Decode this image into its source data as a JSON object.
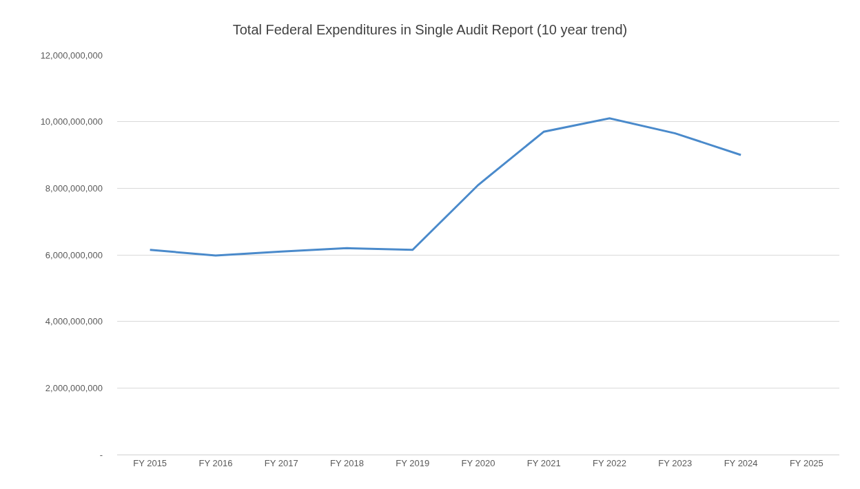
{
  "chart_data": {
    "type": "line",
    "title": "Total Federal Expenditures in Single Audit Report (10 year trend)",
    "categories": [
      "FY 2015",
      "FY 2016",
      "FY 2017",
      "FY 2018",
      "FY 2019",
      "FY 2020",
      "FY 2021",
      "FY 2022",
      "FY 2023",
      "FY 2024",
      "FY 2025"
    ],
    "series": [
      {
        "color": "#4a8acb",
        "values": [
          6150000000,
          5980000000,
          6100000000,
          6200000000,
          6150000000,
          8100000000,
          9700000000,
          10100000000,
          9650000000,
          9000000000,
          null
        ]
      }
    ],
    "ylim": [
      0,
      12000000000
    ],
    "yticks": [
      {
        "value": 0,
        "label": "-"
      },
      {
        "value": 2000000000,
        "label": "2,000,000,000"
      },
      {
        "value": 4000000000,
        "label": "4,000,000,000"
      },
      {
        "value": 6000000000,
        "label": "6,000,000,000"
      },
      {
        "value": 8000000000,
        "label": "8,000,000,000"
      },
      {
        "value": 10000000000,
        "label": "10,000,000,000"
      },
      {
        "value": 12000000000,
        "label": "12,000,000,000"
      }
    ],
    "grid": "y",
    "marker": "none",
    "line_style": "solid"
  }
}
